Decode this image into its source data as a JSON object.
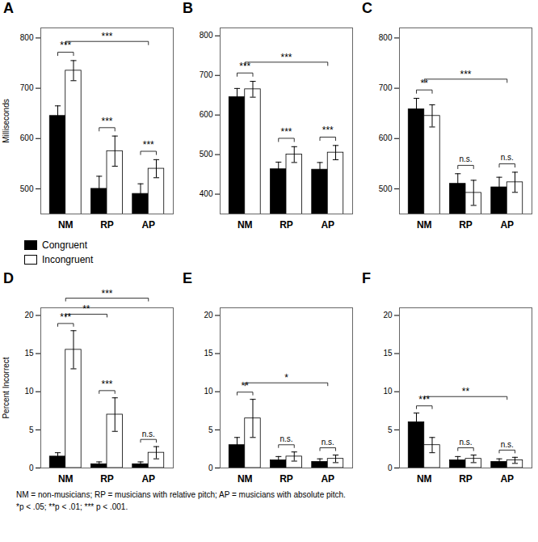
{
  "chart_data": [
    {
      "type": "bar",
      "title": "A",
      "ylabel": "Milliseconds",
      "categories": [
        "NM",
        "RP",
        "AP"
      ],
      "series": [
        {
          "name": "Congruent",
          "color": "black",
          "values": [
            645,
            500,
            490
          ],
          "errors": [
            20,
            25,
            20
          ]
        },
        {
          "name": "Incongruent",
          "color": "white",
          "values": [
            735,
            575,
            540
          ],
          "errors": [
            20,
            30,
            18
          ]
        }
      ],
      "ylim": [
        450,
        820
      ],
      "yticks": [
        500,
        600,
        700,
        800
      ],
      "legend": "bottom",
      "annotations": [
        {
          "text": "***",
          "categories": [
            "NM"
          ]
        },
        {
          "text": "***",
          "categories": [
            "RP"
          ]
        },
        {
          "text": "***",
          "categories": [
            "AP"
          ]
        },
        {
          "text": "***",
          "categories": [
            "NM",
            "AP"
          ]
        }
      ]
    },
    {
      "type": "bar",
      "title": "B",
      "categories": [
        "NM",
        "RP",
        "AP"
      ],
      "series": [
        {
          "name": "Congruent",
          "color": "black",
          "values": [
            645,
            463,
            462
          ],
          "errors": [
            22,
            18,
            18
          ]
        },
        {
          "name": "Incongruent",
          "color": "white",
          "values": [
            665,
            500,
            505
          ],
          "errors": [
            20,
            20,
            18
          ]
        }
      ],
      "ylim": [
        350,
        820
      ],
      "yticks": [
        400,
        500,
        600,
        700,
        800
      ],
      "annotations": [
        {
          "text": "***",
          "categories": [
            "NM"
          ]
        },
        {
          "text": "***",
          "categories": [
            "RP"
          ]
        },
        {
          "text": "***",
          "categories": [
            "AP"
          ]
        },
        {
          "text": "***",
          "categories": [
            "NM",
            "AP"
          ]
        }
      ]
    },
    {
      "type": "bar",
      "title": "C",
      "categories": [
        "NM",
        "RP",
        "AP"
      ],
      "series": [
        {
          "name": "Congruent",
          "color": "black",
          "values": [
            658,
            510,
            503
          ],
          "errors": [
            22,
            20,
            20
          ]
        },
        {
          "name": "Incongruent",
          "color": "white",
          "values": [
            645,
            492,
            513
          ],
          "errors": [
            22,
            25,
            20
          ]
        }
      ],
      "ylim": [
        450,
        820
      ],
      "yticks": [
        500,
        600,
        700,
        800
      ],
      "annotations": [
        {
          "text": "**",
          "categories": [
            "NM"
          ]
        },
        {
          "text": "n.s.",
          "categories": [
            "RP"
          ]
        },
        {
          "text": "n.s.",
          "categories": [
            "AP"
          ]
        },
        {
          "text": "***",
          "categories": [
            "NM",
            "AP"
          ]
        }
      ]
    },
    {
      "type": "bar",
      "title": "D",
      "ylabel": "Percent Incorrect",
      "categories": [
        "NM",
        "RP",
        "AP"
      ],
      "series": [
        {
          "name": "Congruent",
          "color": "black",
          "values": [
            1.5,
            0.5,
            0.5
          ],
          "errors": [
            0.5,
            0.3,
            0.3
          ]
        },
        {
          "name": "Incongruent",
          "color": "white",
          "values": [
            15.5,
            7.0,
            2.0
          ],
          "errors": [
            2.5,
            2.2,
            0.8
          ]
        }
      ],
      "ylim": [
        0,
        21
      ],
      "yticks": [
        0,
        5,
        10,
        15,
        20
      ],
      "annotations": [
        {
          "text": "***",
          "categories": [
            "NM"
          ]
        },
        {
          "text": "***",
          "categories": [
            "RP"
          ]
        },
        {
          "text": "n.s.",
          "categories": [
            "AP"
          ]
        },
        {
          "text": "**",
          "categories": [
            "NM",
            "RP"
          ]
        },
        {
          "text": "***",
          "categories": [
            "NM",
            "AP"
          ]
        }
      ]
    },
    {
      "type": "bar",
      "title": "E",
      "categories": [
        "NM",
        "RP",
        "AP"
      ],
      "series": [
        {
          "name": "Congruent",
          "color": "black",
          "values": [
            3.0,
            1.0,
            0.8
          ],
          "errors": [
            1.0,
            0.5,
            0.4
          ]
        },
        {
          "name": "Incongruent",
          "color": "white",
          "values": [
            6.5,
            1.5,
            1.2
          ],
          "errors": [
            2.5,
            0.6,
            0.5
          ]
        }
      ],
      "ylim": [
        0,
        21
      ],
      "yticks": [
        0,
        5,
        10,
        15,
        20
      ],
      "annotations": [
        {
          "text": "**",
          "categories": [
            "NM"
          ]
        },
        {
          "text": "n.s.",
          "categories": [
            "RP"
          ]
        },
        {
          "text": "n.s.",
          "categories": [
            "AP"
          ]
        },
        {
          "text": "*",
          "categories": [
            "NM",
            "AP"
          ]
        }
      ]
    },
    {
      "type": "bar",
      "title": "F",
      "categories": [
        "NM",
        "RP",
        "AP"
      ],
      "series": [
        {
          "name": "Congruent",
          "color": "black",
          "values": [
            6.0,
            1.0,
            0.8
          ],
          "errors": [
            1.2,
            0.5,
            0.4
          ]
        },
        {
          "name": "Incongruent",
          "color": "white",
          "values": [
            3.0,
            1.2,
            1.0
          ],
          "errors": [
            1.0,
            0.5,
            0.4
          ]
        }
      ],
      "ylim": [
        0,
        21
      ],
      "yticks": [
        0,
        5,
        10,
        15,
        20
      ],
      "annotations": [
        {
          "text": "***",
          "categories": [
            "NM"
          ]
        },
        {
          "text": "n.s.",
          "categories": [
            "RP"
          ]
        },
        {
          "text": "n.s.",
          "categories": [
            "AP"
          ]
        },
        {
          "text": "**",
          "categories": [
            "NM",
            "AP"
          ]
        }
      ]
    }
  ],
  "footnote": [
    "NM = non-musicians; RP = musicians with relative pitch; AP = musicians with absolute pitch.",
    "*p < .05; **p < .01; *** p < .001."
  ]
}
